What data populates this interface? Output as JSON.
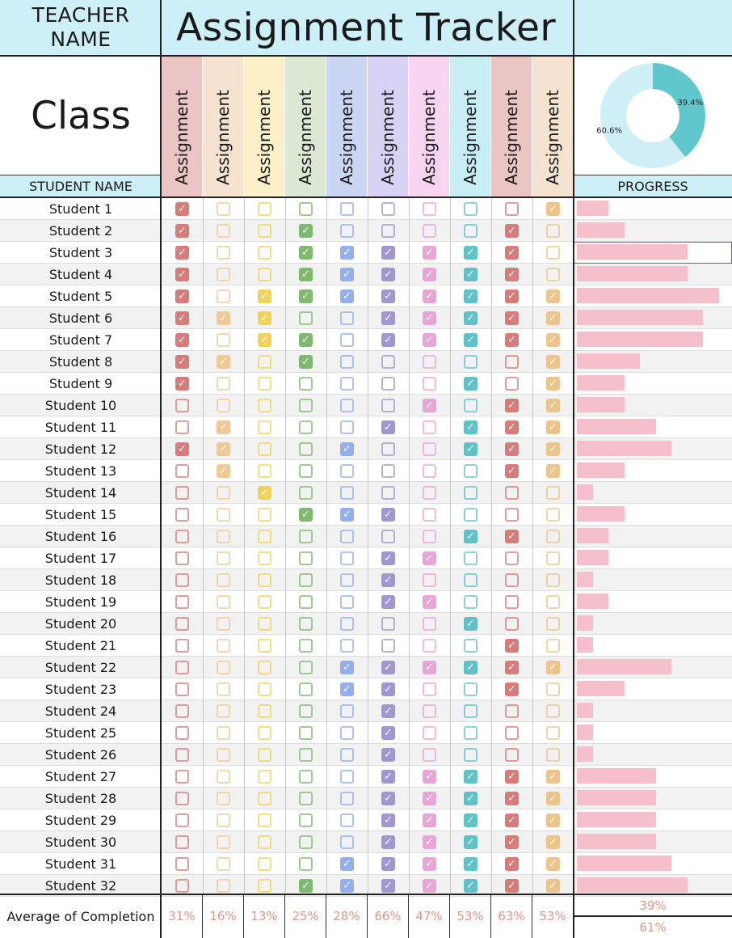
{
  "header": {
    "teacher_label": "TEACHER\nNAME",
    "title": "Assignment Tracker",
    "class_label": "Class"
  },
  "columns": {
    "student_name_header": "STUDENT NAME",
    "progress_header": "PROGRESS",
    "assignments": [
      {
        "label": "Assignment",
        "color": "#d97b78",
        "bg": "#ebc5c4"
      },
      {
        "label": "Assignment",
        "color": "#f0c997",
        "bg": "#f6e3cf"
      },
      {
        "label": "Assignment",
        "color": "#f3d25a",
        "bg": "#fbf0c7"
      },
      {
        "label": "Assignment",
        "color": "#7fb970",
        "bg": "#dbe8d3"
      },
      {
        "label": "Assignment",
        "color": "#93aff0",
        "bg": "#cbd6f5"
      },
      {
        "label": "Assignment",
        "color": "#a196d0",
        "bg": "#d9d2f4"
      },
      {
        "label": "Assignment",
        "color": "#eaa4d5",
        "bg": "#f7d4ef"
      },
      {
        "label": "Assignment",
        "color": "#5fc2c9",
        "bg": "#c7eef4"
      },
      {
        "label": "Assignment",
        "color": "#d97b78",
        "bg": "#ebc5c4"
      },
      {
        "label": "Assignment",
        "color": "#edc58c",
        "bg": "#f6e3cf"
      }
    ]
  },
  "donut": {
    "labels": [
      "39.4%",
      "60.6%"
    ],
    "values": [
      39.4,
      60.6
    ],
    "colors": [
      "#60c7cd",
      "#cdeff5"
    ]
  },
  "students": [
    {
      "name": "Student 1",
      "checks": [
        1,
        0,
        0,
        0,
        0,
        0,
        0,
        0,
        0,
        1
      ],
      "progress": 0.2
    },
    {
      "name": "Student 2",
      "checks": [
        1,
        0,
        0,
        1,
        0,
        0,
        0,
        0,
        1,
        0
      ],
      "progress": 0.3
    },
    {
      "name": "Student 3",
      "checks": [
        1,
        0,
        0,
        1,
        1,
        1,
        1,
        1,
        1,
        0
      ],
      "progress": 0.7
    },
    {
      "name": "Student 4",
      "checks": [
        1,
        0,
        0,
        1,
        1,
        1,
        1,
        1,
        1,
        0
      ],
      "progress": 0.7
    },
    {
      "name": "Student 5",
      "checks": [
        1,
        0,
        1,
        1,
        1,
        1,
        1,
        1,
        1,
        1
      ],
      "progress": 0.9
    },
    {
      "name": "Student 6",
      "checks": [
        1,
        1,
        1,
        0,
        0,
        1,
        1,
        1,
        1,
        1
      ],
      "progress": 0.8
    },
    {
      "name": "Student 7",
      "checks": [
        1,
        0,
        1,
        1,
        0,
        1,
        1,
        1,
        1,
        1
      ],
      "progress": 0.8
    },
    {
      "name": "Student 8",
      "checks": [
        1,
        1,
        0,
        1,
        0,
        0,
        0,
        0,
        0,
        1
      ],
      "progress": 0.4
    },
    {
      "name": "Student 9",
      "checks": [
        1,
        0,
        0,
        0,
        0,
        0,
        0,
        1,
        0,
        1
      ],
      "progress": 0.3
    },
    {
      "name": "Student 10",
      "checks": [
        0,
        0,
        0,
        0,
        0,
        0,
        1,
        0,
        1,
        1
      ],
      "progress": 0.3
    },
    {
      "name": "Student 11",
      "checks": [
        0,
        1,
        0,
        0,
        0,
        1,
        0,
        1,
        1,
        1
      ],
      "progress": 0.5
    },
    {
      "name": "Student 12",
      "checks": [
        1,
        1,
        0,
        0,
        1,
        0,
        0,
        1,
        1,
        1
      ],
      "progress": 0.6
    },
    {
      "name": "Student 13",
      "checks": [
        0,
        1,
        0,
        0,
        0,
        0,
        0,
        0,
        1,
        1
      ],
      "progress": 0.3
    },
    {
      "name": "Student 14",
      "checks": [
        0,
        0,
        1,
        0,
        0,
        0,
        0,
        0,
        0,
        0
      ],
      "progress": 0.1
    },
    {
      "name": "Student 15",
      "checks": [
        0,
        0,
        0,
        1,
        1,
        1,
        0,
        0,
        0,
        0
      ],
      "progress": 0.3
    },
    {
      "name": "Student 16",
      "checks": [
        0,
        0,
        0,
        0,
        0,
        0,
        0,
        1,
        1,
        0
      ],
      "progress": 0.2
    },
    {
      "name": "Student 17",
      "checks": [
        0,
        0,
        0,
        0,
        0,
        1,
        1,
        0,
        0,
        0
      ],
      "progress": 0.2
    },
    {
      "name": "Student 18",
      "checks": [
        0,
        0,
        0,
        0,
        0,
        1,
        0,
        0,
        0,
        0
      ],
      "progress": 0.1
    },
    {
      "name": "Student 19",
      "checks": [
        0,
        0,
        0,
        0,
        0,
        1,
        1,
        0,
        0,
        0
      ],
      "progress": 0.2
    },
    {
      "name": "Student 20",
      "checks": [
        0,
        0,
        0,
        0,
        0,
        0,
        0,
        1,
        0,
        0
      ],
      "progress": 0.1
    },
    {
      "name": "Student 21",
      "checks": [
        0,
        0,
        0,
        0,
        0,
        0,
        0,
        0,
        1,
        0
      ],
      "progress": 0.1
    },
    {
      "name": "Student 22",
      "checks": [
        0,
        0,
        0,
        0,
        1,
        1,
        1,
        1,
        1,
        1
      ],
      "progress": 0.6
    },
    {
      "name": "Student 23",
      "checks": [
        0,
        0,
        0,
        0,
        1,
        1,
        0,
        0,
        1,
        0
      ],
      "progress": 0.3
    },
    {
      "name": "Student 24",
      "checks": [
        0,
        0,
        0,
        0,
        0,
        1,
        0,
        0,
        0,
        0
      ],
      "progress": 0.1
    },
    {
      "name": "Student 25",
      "checks": [
        0,
        0,
        0,
        0,
        0,
        1,
        0,
        0,
        0,
        0
      ],
      "progress": 0.1
    },
    {
      "name": "Student 26",
      "checks": [
        0,
        0,
        0,
        0,
        0,
        1,
        0,
        0,
        0,
        0
      ],
      "progress": 0.1
    },
    {
      "name": "Student 27",
      "checks": [
        0,
        0,
        0,
        0,
        0,
        1,
        1,
        1,
        1,
        1
      ],
      "progress": 0.5
    },
    {
      "name": "Student 28",
      "checks": [
        0,
        0,
        0,
        0,
        0,
        1,
        1,
        1,
        1,
        1
      ],
      "progress": 0.5
    },
    {
      "name": "Student 29",
      "checks": [
        0,
        0,
        0,
        0,
        0,
        1,
        1,
        1,
        1,
        1
      ],
      "progress": 0.5
    },
    {
      "name": "Student 30",
      "checks": [
        0,
        0,
        0,
        0,
        0,
        1,
        1,
        1,
        1,
        1
      ],
      "progress": 0.5
    },
    {
      "name": "Student 31",
      "checks": [
        0,
        0,
        0,
        0,
        1,
        1,
        1,
        1,
        1,
        1
      ],
      "progress": 0.6
    },
    {
      "name": "Student 32",
      "checks": [
        0,
        0,
        0,
        1,
        1,
        1,
        1,
        1,
        1,
        1
      ],
      "progress": 0.7
    }
  ],
  "footer": {
    "average_label": "Average of Completion",
    "averages": [
      "31%",
      "16%",
      "13%",
      "25%",
      "28%",
      "66%",
      "47%",
      "53%",
      "63%",
      "53%"
    ],
    "progress_summary": [
      "39%",
      "61%"
    ]
  }
}
